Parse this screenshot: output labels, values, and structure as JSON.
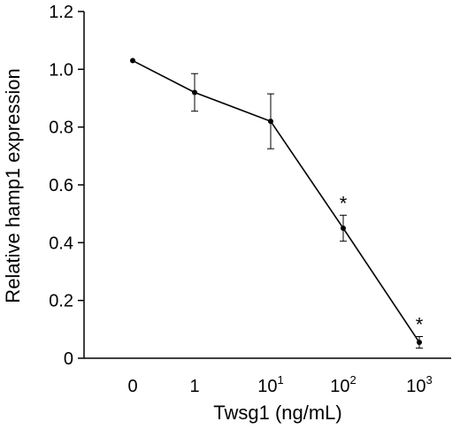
{
  "chart_data": {
    "type": "line",
    "xlabel": "Twsg1 (ng/mL)",
    "ylabel": "Relative hamp1 expression",
    "ylim": [
      0,
      1.2
    ],
    "yticks": [
      "0",
      "0.2",
      "0.4",
      "0.6",
      "0.8",
      "1.0",
      "1.2"
    ],
    "categories": [
      {
        "base": "0",
        "exp": ""
      },
      {
        "base": "1",
        "exp": ""
      },
      {
        "base": "10",
        "exp": "1"
      },
      {
        "base": "10",
        "exp": "2"
      },
      {
        "base": "10",
        "exp": "3"
      }
    ],
    "series": [
      {
        "values": [
          1.03,
          0.92,
          0.82,
          0.45,
          0.055
        ],
        "errors": [
          0.005,
          0.065,
          0.095,
          0.045,
          0.02
        ],
        "annotations": [
          "",
          "",
          "",
          "*",
          "*"
        ]
      }
    ],
    "grid": false,
    "line_color": "#000000"
  }
}
